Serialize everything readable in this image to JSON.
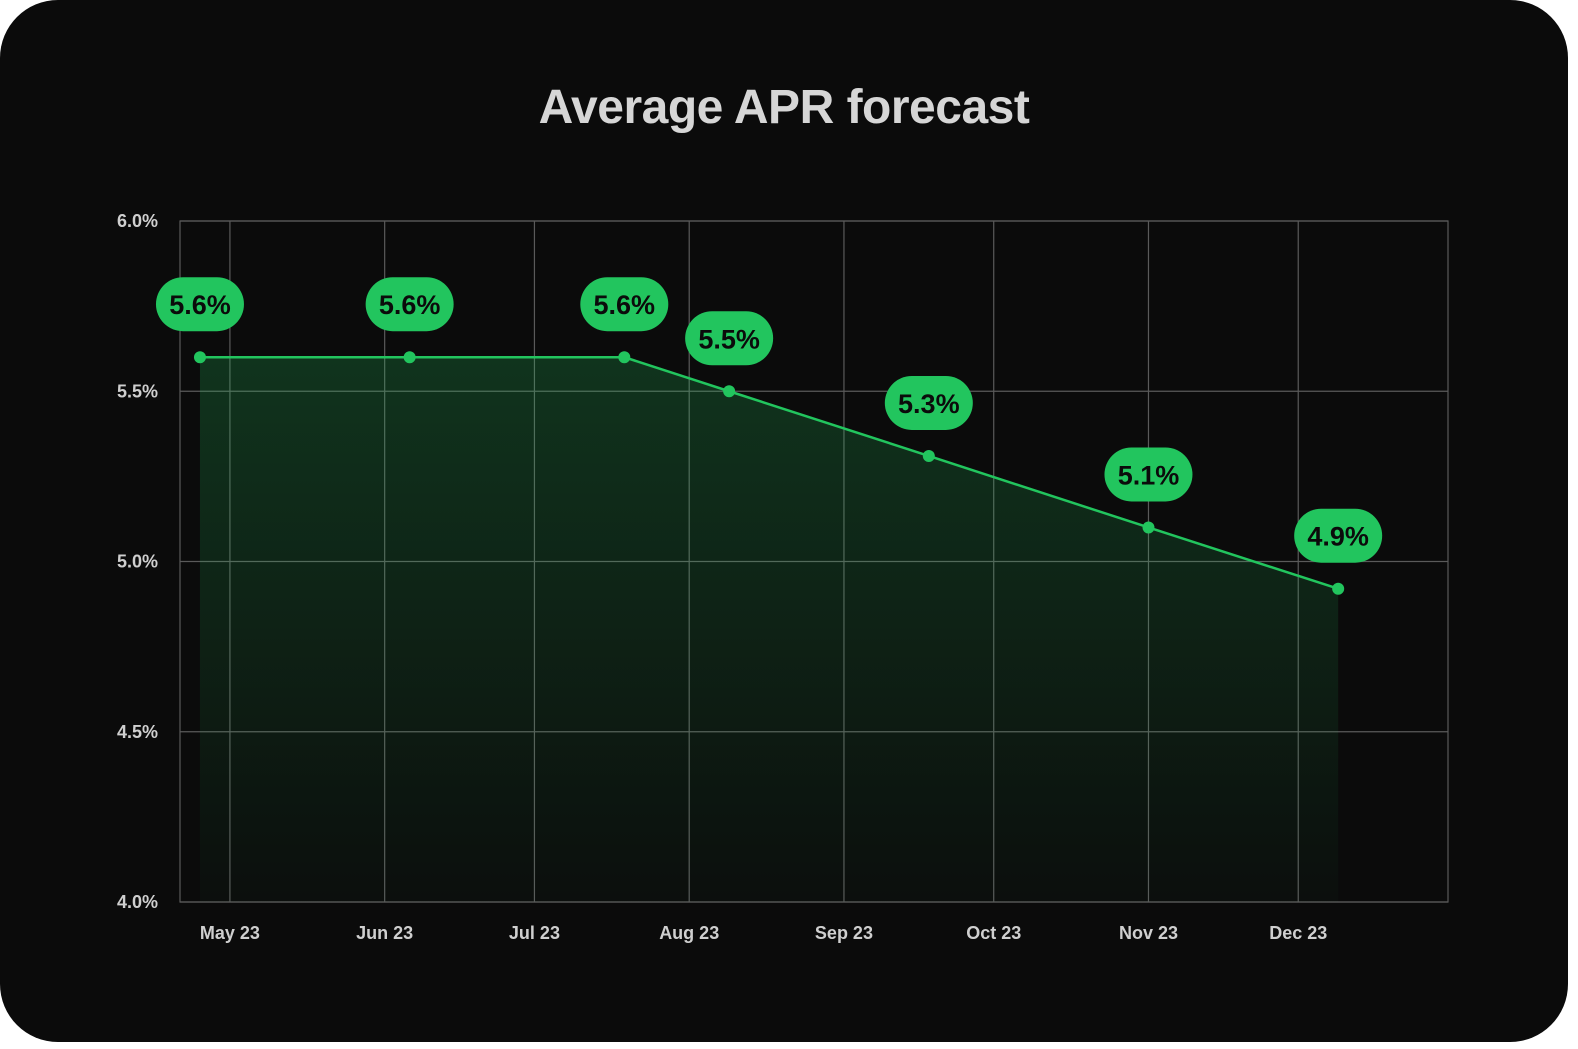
{
  "chart_data": {
    "type": "area",
    "title": "Average APR forecast",
    "xlabel": "",
    "ylabel": "",
    "x_tick_labels": [
      "May 23",
      "Jun 23",
      "Jul 23",
      "Aug 23",
      "Sep 23",
      "Oct 23",
      "Nov 23",
      "Dec 23"
    ],
    "x_range": [
      "2023-04-21",
      "2023-12-31"
    ],
    "ylim": [
      4.0,
      6.0
    ],
    "y_ticks": [
      6.0,
      5.5,
      5.0,
      4.5,
      4.0
    ],
    "y_tick_labels": [
      "6.0%",
      "5.5%",
      "5.0%",
      "4.5%",
      "4.0%"
    ],
    "grid": true,
    "series": [
      {
        "points": [
          {
            "x": "2023-04-25",
            "y": 5.6,
            "label": "5.6%"
          },
          {
            "x": "2023-06-06",
            "y": 5.6,
            "label": "5.6%"
          },
          {
            "x": "2023-07-19",
            "y": 5.6,
            "label": "5.6%"
          },
          {
            "x": "2023-08-09",
            "y": 5.5,
            "label": "5.5%"
          },
          {
            "x": "2023-09-18",
            "y": 5.31,
            "label": "5.3%"
          },
          {
            "x": "2023-11-01",
            "y": 5.1,
            "label": "5.1%"
          },
          {
            "x": "2023-12-09",
            "y": 4.92,
            "label": "4.9%"
          }
        ]
      }
    ],
    "colors": {
      "background": "#0b0b0b",
      "line": "#22c55e",
      "label_bg": "#22c55e",
      "grid": "#5a5a5a",
      "text": "#cfcfcf"
    }
  }
}
